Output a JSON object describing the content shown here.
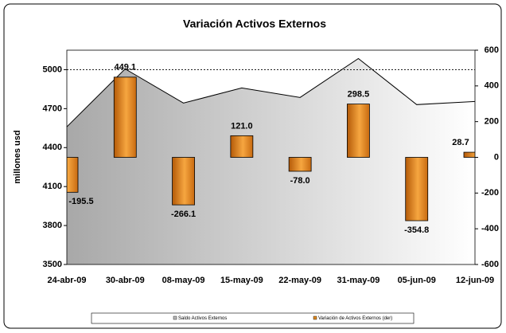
{
  "chart_data": {
    "type": "combo",
    "title": "Variación Activos Externos",
    "ylabel": "millones usd",
    "categories": [
      "24-abr-09",
      "30-abr-09",
      "08-may-09",
      "15-may-09",
      "22-may-09",
      "31-may-09",
      "05-jun-09",
      "12-jun-09"
    ],
    "series": [
      {
        "name": "Saldo Activos Externos",
        "type": "area",
        "color": "#000000",
        "values": [
          4560,
          5006,
          4743,
          4859,
          4786,
          5086,
          4731,
          4755
        ]
      },
      {
        "name": "Variación de Activos Externos (der)",
        "type": "bar",
        "axis": "y2",
        "color": "#e08a20",
        "values": [
          -195.5,
          449.1,
          -266.1,
          121.0,
          -78.0,
          298.5,
          -354.8,
          28.7
        ],
        "value_labels": [
          "-195.5",
          "449.1",
          "-266.1",
          "121.0",
          "-78.0",
          "298.5",
          "-354.8",
          "28.7"
        ]
      }
    ],
    "ylim": [
      3500,
      5150
    ],
    "yticks": [
      3500,
      3800,
      4100,
      4400,
      4700,
      5000
    ],
    "y2lim": [
      -600,
      600
    ],
    "y2ticks": [
      -600,
      -400,
      -200,
      0,
      200,
      400,
      600
    ],
    "dashed_top_grid": true
  }
}
